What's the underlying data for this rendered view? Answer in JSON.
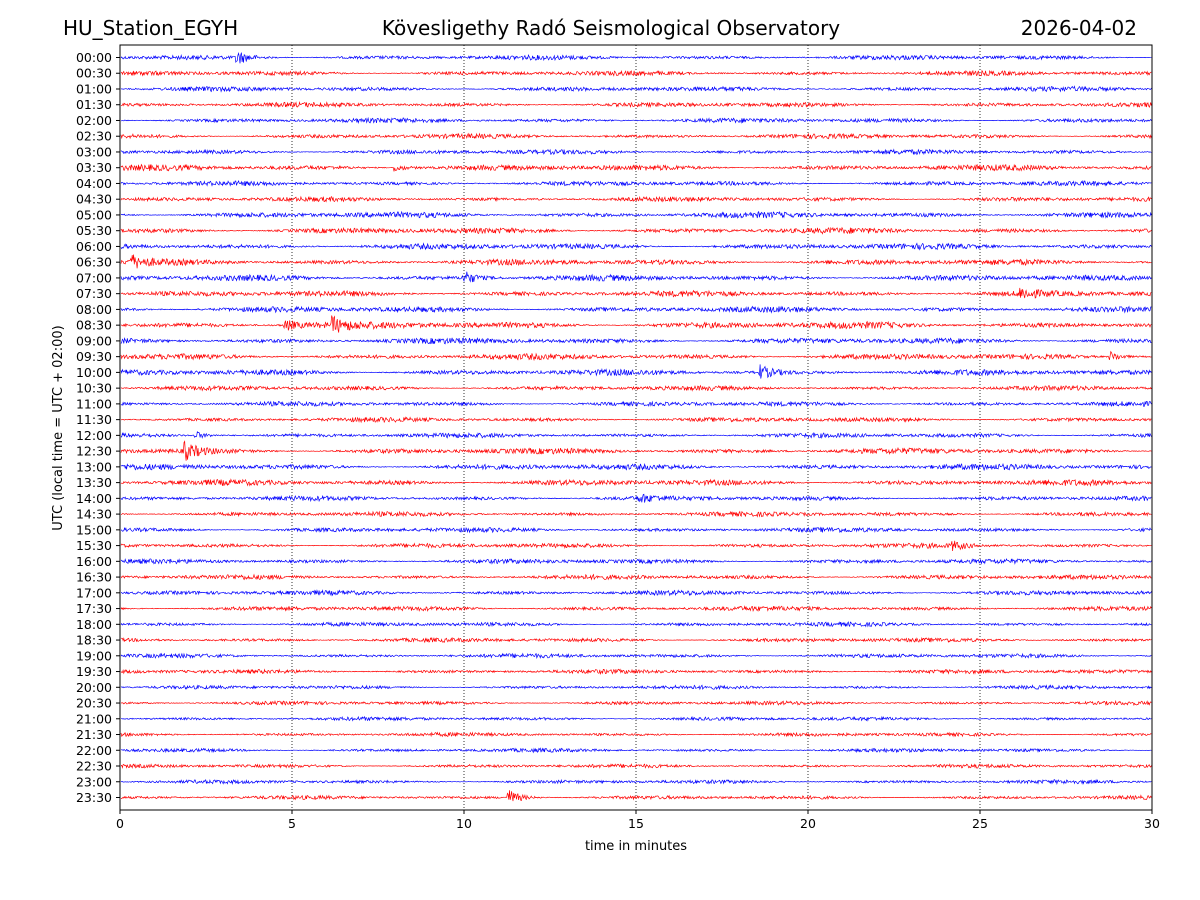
{
  "header": {
    "station": "HU_Station_EGYH",
    "title": "Kövesligethy Radó Seismological Observatory",
    "date": "2026-04-02"
  },
  "chart_data": {
    "type": "line",
    "title": "Kövesligethy Radó Seismological Observatory",
    "xlabel": "time in minutes",
    "ylabel": "UTC (local time = UTC + 02:00)",
    "xlim": [
      0,
      30
    ],
    "xticks": [
      "0",
      "5",
      "10",
      "15",
      "20",
      "25",
      "30"
    ],
    "grid": "vertical dotted at x ticks",
    "colors": [
      "#0000ff",
      "#ff0000"
    ],
    "rows": [
      "00:00",
      "00:30",
      "01:00",
      "01:30",
      "02:00",
      "02:30",
      "03:00",
      "03:30",
      "04:00",
      "04:30",
      "05:00",
      "05:30",
      "06:00",
      "06:30",
      "07:00",
      "07:30",
      "08:00",
      "08:30",
      "09:00",
      "09:30",
      "10:00",
      "10:30",
      "11:00",
      "11:30",
      "12:00",
      "12:30",
      "13:00",
      "13:30",
      "14:00",
      "14:30",
      "15:00",
      "15:30",
      "16:00",
      "16:30",
      "17:00",
      "17:30",
      "18:00",
      "18:30",
      "19:00",
      "19:30",
      "20:00",
      "20:30",
      "21:00",
      "21:30",
      "22:00",
      "22:30",
      "23:00",
      "23:30"
    ],
    "noise_level": [
      2,
      2,
      2,
      2,
      2,
      2,
      2,
      2.5,
      2,
      2,
      2.5,
      2.5,
      2.5,
      2.5,
      2.5,
      2.5,
      2.5,
      3,
      2.5,
      2.5,
      2.5,
      2,
      2,
      2,
      2,
      2.5,
      2.5,
      2.5,
      2,
      2,
      2,
      2,
      2,
      2,
      2,
      2,
      1.8,
      1.8,
      1.8,
      1.8,
      1.6,
      1.6,
      1.6,
      1.6,
      1.6,
      1.6,
      1.6,
      1.6
    ],
    "events": [
      {
        "row": 0,
        "minute": 3.4,
        "amplitude": 7
      },
      {
        "row": 7,
        "minute": 8.0,
        "amplitude": 4
      },
      {
        "row": 13,
        "minute": 0.3,
        "amplitude": 7
      },
      {
        "row": 14,
        "minute": 10.0,
        "amplitude": 7
      },
      {
        "row": 15,
        "minute": 26.2,
        "amplitude": 5
      },
      {
        "row": 17,
        "minute": 4.8,
        "amplitude": 6
      },
      {
        "row": 17,
        "minute": 6.2,
        "amplitude": 7
      },
      {
        "row": 19,
        "minute": 28.8,
        "amplitude": 5
      },
      {
        "row": 20,
        "minute": 18.6,
        "amplitude": 7
      },
      {
        "row": 24,
        "minute": 2.2,
        "amplitude": 4
      },
      {
        "row": 25,
        "minute": 1.9,
        "amplitude": 8
      },
      {
        "row": 28,
        "minute": 15.1,
        "amplitude": 4
      },
      {
        "row": 31,
        "minute": 24.2,
        "amplitude": 4
      },
      {
        "row": 47,
        "minute": 11.3,
        "amplitude": 8
      }
    ]
  }
}
